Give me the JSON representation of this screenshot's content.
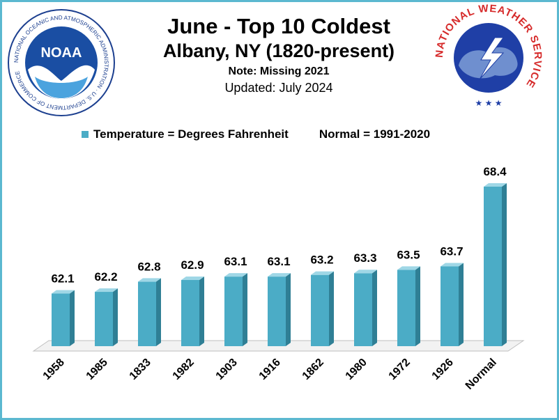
{
  "header": {
    "title": "June - Top  10 Coldest",
    "location": "Albany, NY (1820-present)",
    "note": "Note: Missing 2021",
    "updated": "Updated: July 2024"
  },
  "legend": {
    "series_label": "Temperature = Degrees Fahrenheit",
    "normal_label": "Normal = 1991-2020"
  },
  "logos": {
    "noaa_text": "NOAA",
    "noaa_ring_text": "NATIONAL OCEANIC AND ATMOSPHERIC ADMINISTRATION · U.S. DEPARTMENT OF COMMERCE",
    "nws_ring_text": "NATIONAL WEATHER SERVICE"
  },
  "colors": {
    "bar_front": "#4bacc6",
    "bar_side": "#2f7f95",
    "bar_top": "#9fd7e6",
    "frame": "#5bb8d0"
  },
  "chart_data": {
    "type": "bar",
    "categories": [
      "1958",
      "1985",
      "1833",
      "1982",
      "1903",
      "1916",
      "1862",
      "1980",
      "1972",
      "1926",
      "Normal"
    ],
    "values": [
      62.1,
      62.2,
      62.8,
      62.9,
      63.1,
      63.1,
      63.2,
      63.3,
      63.5,
      63.7,
      68.4
    ],
    "series": [
      {
        "name": "Temperature = Degrees Fahrenheit",
        "values": [
          62.1,
          62.2,
          62.8,
          62.9,
          63.1,
          63.1,
          63.2,
          63.3,
          63.5,
          63.7,
          68.4
        ]
      }
    ],
    "title": "June - Top  10 Coldest",
    "xlabel": "",
    "ylabel": "",
    "ylim": [
      59.0,
      68.4
    ],
    "grid": false,
    "legend_position": "top",
    "data_labels": true
  }
}
